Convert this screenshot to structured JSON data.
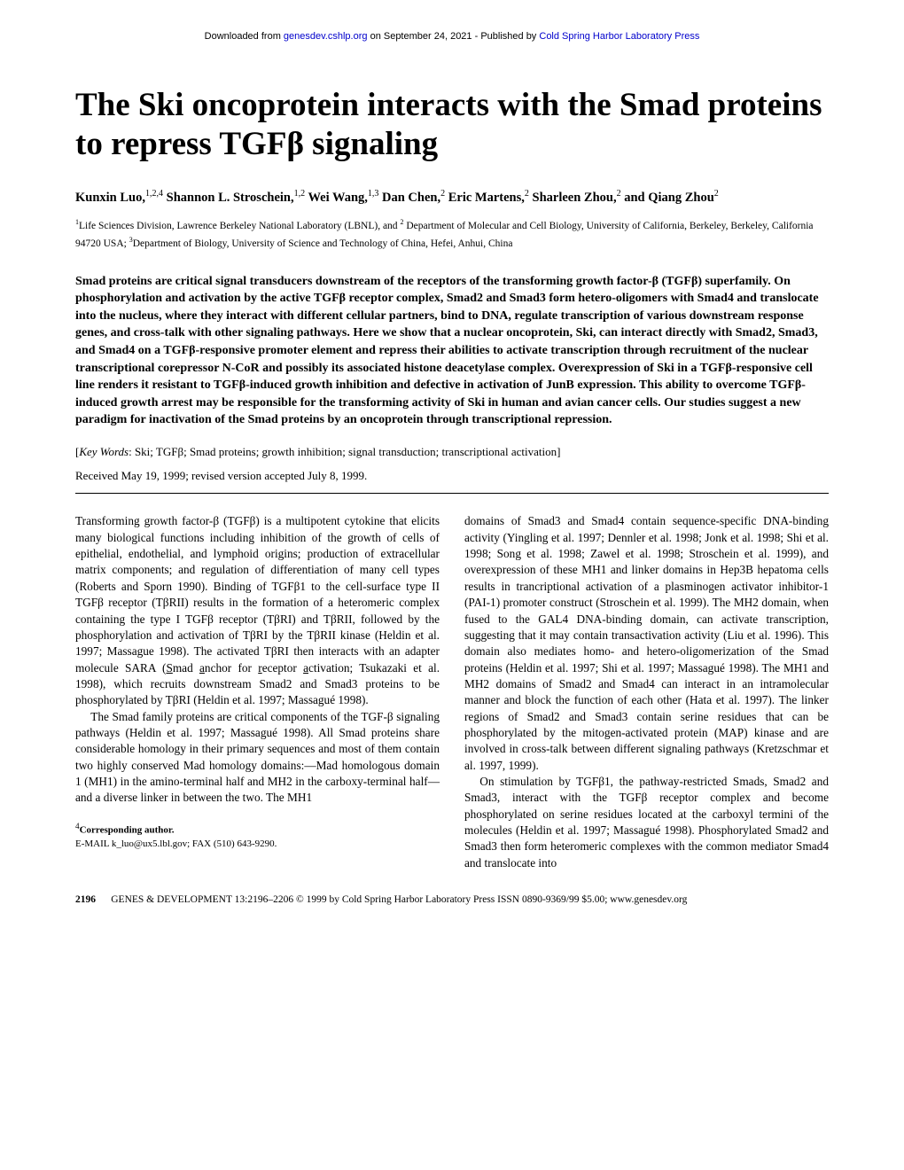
{
  "banner": {
    "prefix": "Downloaded from ",
    "link1_text": "genesdev.cshlp.org",
    "middle": " on September 24, 2021 - Published by ",
    "link2_text": "Cold Spring Harbor Laboratory Press"
  },
  "title": "The Ski oncoprotein interacts with the Smad proteins to repress TGFβ signaling",
  "authors_html": "Kunxin Luo,<sup>1,2,4</sup> Shannon L. Stroschein,<sup>1,2</sup> Wei Wang,<sup>1,3</sup> Dan Chen,<sup>2</sup> Eric Martens,<sup>2</sup> Sharleen Zhou,<sup>2</sup> and Qiang Zhou<sup>2</sup>",
  "affiliations_html": "<sup>1</sup>Life Sciences Division, Lawrence Berkeley National Laboratory (LBNL), and <sup>2</sup> Department of Molecular and Cell Biology, University of California, Berkeley, Berkeley, California 94720 USA; <sup>3</sup>Department of Biology, University of Science and Technology of China, Hefei, Anhui, China",
  "abstract": "Smad proteins are critical signal transducers downstream of the receptors of the transforming growth factor-β (TGFβ) superfamily. On phosphorylation and activation by the active TGFβ receptor complex, Smad2 and Smad3 form hetero-oligomers with Smad4 and translocate into the nucleus, where they interact with different cellular partners, bind to DNA, regulate transcription of various downstream response genes, and cross-talk with other signaling pathways. Here we show that a nuclear oncoprotein, Ski, can interact directly with Smad2, Smad3, and Smad4 on a TGFβ-responsive promoter element and repress their abilities to activate transcription through recruitment of the nuclear transcriptional corepressor N-CoR and possibly its associated histone deacetylase complex. Overexpression of Ski in a TGFβ-responsive cell line renders it resistant to TGFβ-induced growth inhibition and defective in activation of JunB expression. This ability to overcome TGFβ-induced growth arrest may be responsible for the transforming activity of Ski in human and avian cancer cells. Our studies suggest a new paradigm for inactivation of the Smad proteins by an oncoprotein through transcriptional repression.",
  "keywords_html": "[<i>Key Words</i>: Ski; TGFβ; Smad proteins; growth inhibition; signal transduction; transcriptional activation]",
  "received": "Received May 19, 1999; revised version accepted July 8, 1999.",
  "body": {
    "col1": {
      "p1": "Transforming growth factor-β (TGFβ) is a multipotent cytokine that elicits many biological functions including inhibition of the growth of cells of epithelial, endothelial, and lymphoid origins; production of extracellular matrix components; and regulation of differentiation of many cell types (Roberts and Sporn 1990). Binding of TGFβ1 to the cell-surface type II TGFβ receptor (TβRII) results in the formation of a heteromeric complex containing the type I TGFβ receptor (TβRI) and TβRII, followed by the phosphorylation and activation of TβRI by the TβRII kinase (Heldin et al. 1997; Massague 1998). The activated TβRI then interacts with an adapter molecule SARA (<u>S</u>mad <u>a</u>nchor for <u>r</u>eceptor <u>a</u>ctivation; Tsukazaki et al. 1998), which recruits downstream Smad2 and Smad3 proteins to be phosphorylated by TβRI (Heldin et al. 1997; Massagué 1998).",
      "p2": "The Smad family proteins are critical components of the TGF-β signaling pathways (Heldin et al. 1997; Massagué 1998). All Smad proteins share considerable homology in their primary sequences and most of them contain two highly conserved Mad homology domains:—Mad homologous domain 1 (MH1) in the amino-terminal half and MH2 in the carboxy-terminal half—and a diverse linker in between the two. The MH1"
    },
    "col2": {
      "p1": "domains of Smad3 and Smad4 contain sequence-specific DNA-binding activity (Yingling et al. 1997; Dennler et al. 1998; Jonk et al. 1998; Shi et al. 1998; Song et al. 1998; Zawel et al. 1998; Stroschein et al. 1999), and overexpression of these MH1 and linker domains in Hep3B hepatoma cells results in trancriptional activation of a plasminogen activator inhibitor-1 (PAI-1) promoter construct (Stroschein et al. 1999). The MH2 domain, when fused to the GAL4 DNA-binding domain, can activate transcription, suggesting that it may contain transactivation activity (Liu et al. 1996). This domain also mediates homo- and hetero-oligomerization of the Smad proteins (Heldin et al. 1997; Shi et al. 1997; Massagué 1998). The MH1 and MH2 domains of Smad2 and Smad4 can interact in an intramolecular manner and block the function of each other (Hata et al. 1997). The linker regions of Smad2 and Smad3 contain serine residues that can be phosphorylated by the mitogen-activated protein (MAP) kinase and are involved in cross-talk between different signaling pathways (Kretzschmar et al. 1997, 1999).",
      "p2": "On stimulation by TGFβ1, the pathway-restricted Smads, Smad2 and Smad3, interact with the TGFβ receptor complex and become phosphorylated on serine residues located at the carboxyl termini of the molecules (Heldin et al. 1997; Massagué 1998). Phosphorylated Smad2 and Smad3 then form heteromeric complexes with the common mediator Smad4 and translocate into"
    }
  },
  "footnote": {
    "line1_html": "<sup>4</sup><b>Corresponding author.</b>",
    "line2": "E-MAIL k_luo@ux5.lbl.gov; FAX (510) 643-9290."
  },
  "footer": {
    "page_num": "2196",
    "citation": "GENES & DEVELOPMENT 13:2196–2206 © 1999 by Cold Spring Harbor Laboratory Press ISSN 0890-9369/99 $5.00; www.genesdev.org"
  }
}
